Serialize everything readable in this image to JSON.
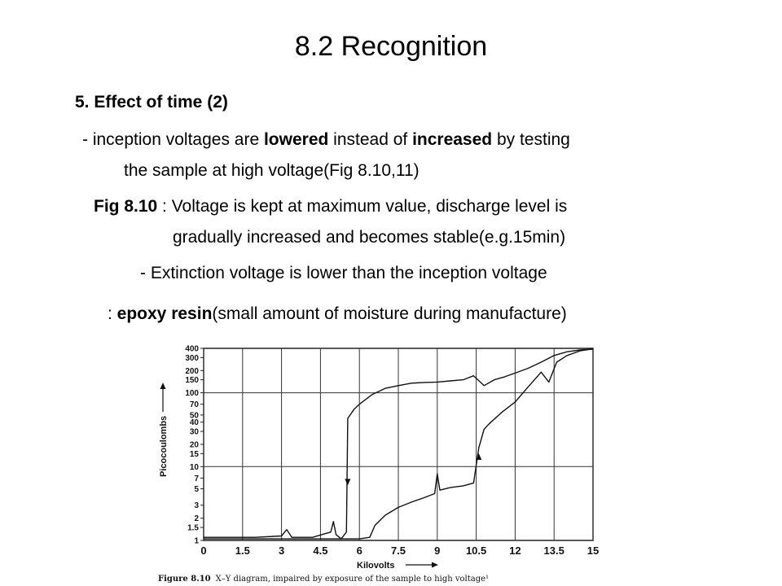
{
  "slide": {
    "title": "8.2 Recognition",
    "heading": "5. Effect of time (2)",
    "line1": {
      "prefix": "- inception voltages are ",
      "bold1": "lowered",
      "middle": " instead of ",
      "bold2": "increased",
      "suffix": " by testing",
      "continuation": "the sample at high voltage(Fig 8.10,11)"
    },
    "line2": {
      "bold": "Fig 8.10",
      "text": " :  Voltage is kept at maximum value, discharge level is",
      "continuation": "gradually increased and becomes stable(e.g.15min)"
    },
    "line3": "- Extinction voltage is lower than the inception voltage",
    "line4": {
      "prefix": ": ",
      "bold": "epoxy resin",
      "suffix": "(small amount of moisture during manufacture)"
    }
  },
  "figure": {
    "caption_bold": "Figure 8.10",
    "caption_text": "X–Y diagram, impaired by exposure of the sample to high voltage¹",
    "chart_data": {
      "type": "line",
      "xlabel": "Kilovolts",
      "ylabel": "Picocoulombs",
      "xlim": [
        0,
        15
      ],
      "ylim": [
        1,
        400
      ],
      "yscale": "log",
      "x_ticks": [
        "0",
        "1.5",
        "3",
        "4.5",
        "6",
        "7.5",
        "9",
        "10.5",
        "12",
        "13.5",
        "15"
      ],
      "y_ticks": [
        "400",
        "300",
        "200",
        "150",
        "100",
        "70",
        "50",
        "40",
        "30",
        "20",
        "15",
        "10",
        "7",
        "5",
        "3",
        "2",
        "1.5",
        "1"
      ],
      "series": [
        {
          "points": [
            [
              0,
              1.1
            ],
            [
              2,
              1.1
            ],
            [
              3,
              1.15
            ],
            [
              3.2,
              1.4
            ],
            [
              3.4,
              1.1
            ],
            [
              4.2,
              1.1
            ],
            [
              4.9,
              1.3
            ],
            [
              5,
              1.8
            ],
            [
              5.1,
              1.2
            ],
            [
              5.3,
              1.05
            ],
            [
              5.5,
              1.3
            ],
            [
              5.55,
              45
            ],
            [
              5.8,
              60
            ],
            [
              6,
              70
            ],
            [
              6.5,
              95
            ],
            [
              7,
              115
            ],
            [
              7.5,
              125
            ],
            [
              8,
              135
            ],
            [
              8.5,
              138
            ],
            [
              9,
              140
            ],
            [
              9.5,
              145
            ],
            [
              10,
              150
            ],
            [
              10.4,
              170
            ],
            [
              10.8,
              125
            ],
            [
              11.2,
              150
            ],
            [
              11.6,
              165
            ],
            [
              12,
              185
            ],
            [
              12.5,
              215
            ],
            [
              13,
              260
            ],
            [
              13.5,
              320
            ],
            [
              14,
              360
            ],
            [
              14.5,
              380
            ],
            [
              15,
              390
            ]
          ]
        },
        {
          "points": [
            [
              0,
              1.05
            ],
            [
              6,
              1.05
            ],
            [
              6.4,
              1.1
            ],
            [
              6.6,
              1.6
            ],
            [
              7,
              2.2
            ],
            [
              7.5,
              2.8
            ],
            [
              8,
              3.3
            ],
            [
              8.5,
              3.8
            ],
            [
              8.9,
              4.3
            ],
            [
              9,
              8
            ],
            [
              9.1,
              4.8
            ],
            [
              9.5,
              5.2
            ],
            [
              10,
              5.5
            ],
            [
              10.4,
              6
            ],
            [
              10.6,
              18
            ],
            [
              10.8,
              32
            ],
            [
              11,
              38
            ],
            [
              11.5,
              55
            ],
            [
              12,
              75
            ],
            [
              12.5,
              120
            ],
            [
              13,
              190
            ],
            [
              13.3,
              140
            ],
            [
              13.6,
              260
            ],
            [
              14,
              320
            ],
            [
              14.5,
              370
            ],
            [
              15,
              395
            ]
          ]
        }
      ]
    }
  }
}
